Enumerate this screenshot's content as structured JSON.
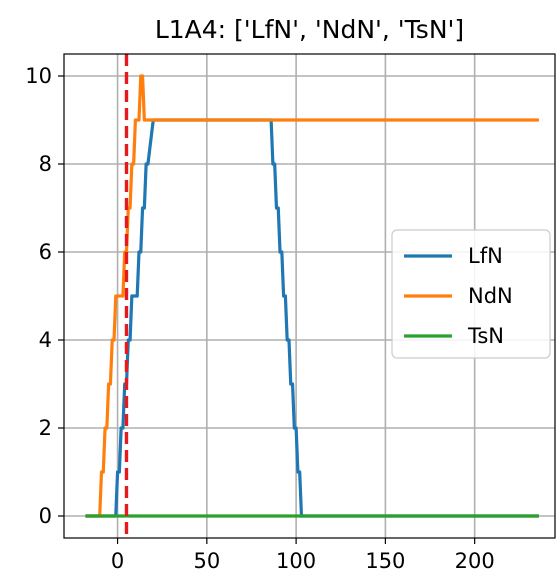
{
  "chart_data": {
    "type": "line",
    "title": "L1A4: ['LfN', 'NdN', 'TsN']",
    "xlabel": "",
    "ylabel": "",
    "xlim": [
      -30,
      245
    ],
    "ylim": [
      -0.5,
      10.5
    ],
    "xticks": [
      0,
      50,
      100,
      150,
      200
    ],
    "yticks": [
      0,
      2,
      4,
      6,
      8,
      10
    ],
    "grid": true,
    "legend_position": "center-right",
    "vline": {
      "x": 5,
      "color": "#e41a1c",
      "style": "dashed"
    },
    "series": [
      {
        "name": "LfN",
        "color": "#1f77b4",
        "x": [
          -18,
          -1,
          0,
          1,
          2,
          3,
          4,
          5,
          6,
          7,
          8,
          9,
          10,
          11,
          12,
          13,
          14,
          15,
          16,
          17,
          20,
          85,
          86,
          87,
          88,
          89,
          90,
          91,
          92,
          93,
          94,
          95,
          96,
          97,
          98,
          99,
          100,
          101,
          102,
          103,
          104,
          105,
          106,
          236
        ],
        "y": [
          0,
          0,
          1,
          1,
          2,
          2,
          3,
          3,
          4,
          4,
          5,
          5,
          5,
          5,
          6,
          6,
          7,
          7,
          8,
          8,
          9,
          9,
          9,
          8,
          8,
          7,
          7,
          6,
          6,
          5,
          5,
          4,
          4,
          3,
          3,
          2,
          2,
          1,
          1,
          0,
          0,
          0,
          0,
          0
        ]
      },
      {
        "name": "NdN",
        "color": "#ff7f0e",
        "x": [
          -18,
          -10,
          -9,
          -8,
          -7,
          -6,
          -5,
          -4,
          -3,
          -2,
          -1,
          0,
          1,
          2,
          3,
          4,
          5,
          6,
          7,
          8,
          9,
          10,
          11,
          12,
          13,
          14,
          15,
          16,
          17,
          236
        ],
        "y": [
          0,
          0,
          1,
          1,
          2,
          2,
          3,
          3,
          4,
          4,
          5,
          5,
          5,
          5,
          5,
          6,
          6,
          7,
          7,
          8,
          8,
          9,
          9,
          9,
          10,
          10,
          9,
          9,
          9,
          9
        ]
      },
      {
        "name": "TsN",
        "color": "#2ca02c",
        "x": [
          -18,
          236
        ],
        "y": [
          0,
          0
        ]
      }
    ]
  }
}
